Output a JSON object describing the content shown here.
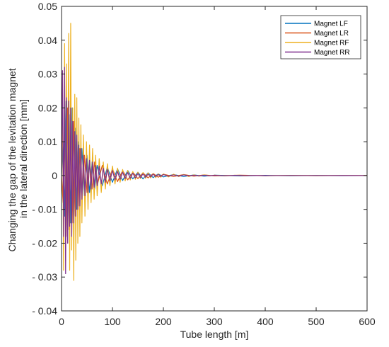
{
  "chart_data": {
    "type": "line",
    "xlabel": "Tube length [m]",
    "ylabel": [
      "Changing the gap of the levitation magnet",
      "in the lateral direction [mm]"
    ],
    "xlim": [
      0,
      600
    ],
    "ylim": [
      -0.04,
      0.05
    ],
    "x_ticks": [
      0,
      100,
      200,
      300,
      400,
      500,
      600
    ],
    "x_tick_labels": [
      "0",
      "100",
      "200",
      "300",
      "400",
      "500",
      "600"
    ],
    "y_ticks": [
      0.05,
      0.04,
      0.03,
      0.02,
      0.01,
      0,
      -0.01,
      -0.02,
      -0.03,
      -0.04
    ],
    "y_tick_labels": [
      "0.05",
      "0.04",
      "0.03",
      "0.02",
      "0.01",
      "0",
      "- 0.01",
      "- 0.02",
      "- 0.03",
      "- 0.04"
    ],
    "grid": false,
    "legend_position": "top-right",
    "series": [
      {
        "name": "Magnet LF",
        "color": "#0072BD",
        "x": [
          0,
          3,
          6,
          9,
          12,
          15,
          18,
          21,
          24,
          27,
          30,
          33,
          36,
          40,
          45,
          50,
          55,
          60,
          65,
          70,
          80,
          90,
          100,
          110,
          120,
          130,
          140,
          150,
          160,
          170,
          180,
          190,
          200,
          220,
          240,
          260,
          280,
          300,
          350,
          400,
          450,
          500,
          550,
          600
        ],
        "y": [
          0,
          0.01,
          -0.012,
          0.022,
          -0.02,
          0.018,
          -0.014,
          0.02,
          -0.012,
          0.014,
          -0.01,
          0.01,
          -0.008,
          0.008,
          -0.006,
          0.006,
          -0.005,
          0.004,
          -0.004,
          0.003,
          -0.003,
          0.0025,
          -0.002,
          0.002,
          -0.0015,
          0.0015,
          -0.001,
          0.001,
          -0.001,
          0.0008,
          -0.0006,
          0.0005,
          -0.0004,
          0.0003,
          -0.0003,
          0.0002,
          -0.0002,
          0.0001,
          -0.0001,
          5e-05,
          -5e-05,
          3e-05,
          -2e-05,
          0
        ]
      },
      {
        "name": "Magnet LR",
        "color": "#D95319",
        "x": [
          0,
          3,
          6,
          9,
          12,
          15,
          18,
          21,
          24,
          27,
          30,
          33,
          36,
          40,
          45,
          50,
          55,
          60,
          65,
          70,
          80,
          90,
          100,
          110,
          120,
          130,
          140,
          150,
          160,
          170,
          180,
          190,
          200,
          220,
          240,
          260,
          280,
          300,
          350,
          400,
          450,
          500,
          550,
          600
        ],
        "y": [
          0,
          -0.008,
          0.012,
          -0.018,
          0.02,
          -0.016,
          0.023,
          -0.014,
          0.016,
          -0.012,
          0.012,
          -0.009,
          0.008,
          -0.007,
          0.006,
          -0.005,
          0.005,
          -0.004,
          0.004,
          -0.003,
          0.003,
          -0.0025,
          0.002,
          -0.0018,
          0.0015,
          -0.0013,
          0.001,
          -0.0009,
          0.0008,
          -0.0007,
          0.0006,
          -0.0005,
          0.0004,
          -0.0003,
          0.0003,
          -0.0002,
          0.0002,
          -0.0001,
          0.0001,
          -5e-05,
          4e-05,
          -3e-05,
          2e-05,
          0
        ]
      },
      {
        "name": "Magnet RF",
        "color": "#EDB120",
        "x": [
          0,
          2,
          4,
          6,
          8,
          10,
          12,
          14,
          16,
          18,
          20,
          22,
          24,
          26,
          28,
          30,
          32,
          34,
          36,
          38,
          40,
          43,
          46,
          49,
          52,
          55,
          58,
          61,
          64,
          67,
          70,
          74,
          78,
          82,
          86,
          90,
          95,
          100,
          105,
          110,
          115,
          120,
          125,
          130,
          135,
          140,
          145,
          150,
          155,
          160,
          165,
          170,
          175,
          180,
          185,
          190,
          195,
          200,
          210,
          220,
          230,
          240,
          250,
          260,
          270,
          280,
          290,
          300,
          320,
          340,
          360,
          380,
          400,
          450,
          500,
          550,
          600
        ],
        "y": [
          0,
          0.022,
          -0.028,
          0.039,
          -0.025,
          0.033,
          -0.02,
          0.042,
          -0.028,
          0.045,
          -0.022,
          0.02,
          -0.031,
          0.024,
          -0.025,
          0.023,
          -0.02,
          0.017,
          -0.018,
          0.015,
          -0.014,
          0.012,
          -0.012,
          0.01,
          -0.01,
          0.009,
          -0.008,
          0.008,
          -0.007,
          0.006,
          -0.006,
          0.005,
          -0.005,
          0.004,
          -0.004,
          0.0035,
          -0.003,
          0.0028,
          -0.0025,
          0.0022,
          -0.002,
          0.0018,
          -0.0016,
          0.0015,
          -0.0013,
          0.0012,
          -0.0011,
          0.001,
          -0.0009,
          0.0009,
          -0.0008,
          0.0008,
          -0.0007,
          0.0006,
          -0.0006,
          0.0005,
          -0.0005,
          0.0005,
          -0.0004,
          0.0004,
          -0.0003,
          0.0003,
          -0.0003,
          0.0002,
          -0.0002,
          0.0002,
          -0.0001,
          0.0001,
          -0.0001,
          8e-05,
          -6e-05,
          5e-05,
          -4e-05,
          3e-05,
          -2e-05,
          1e-05,
          0
        ]
      },
      {
        "name": "Magnet RR",
        "color": "#7E2F8E",
        "x": [
          0,
          2,
          4,
          6,
          8,
          10,
          12,
          14,
          16,
          18,
          20,
          22,
          24,
          26,
          28,
          30,
          32,
          34,
          36,
          38,
          40,
          43,
          46,
          49,
          52,
          55,
          58,
          61,
          64,
          67,
          70,
          74,
          78,
          82,
          86,
          90,
          95,
          100,
          105,
          110,
          115,
          120,
          125,
          130,
          135,
          140,
          145,
          150,
          155,
          160,
          165,
          170,
          175,
          180,
          185,
          190,
          195,
          200,
          210,
          220,
          230,
          240,
          250,
          260,
          270,
          280,
          290,
          300,
          320,
          340,
          360,
          380,
          400,
          450,
          500,
          550,
          600
        ],
        "y": [
          0,
          0.031,
          -0.018,
          0.032,
          -0.029,
          0.023,
          -0.02,
          0.022,
          -0.015,
          0.02,
          -0.018,
          0.016,
          -0.014,
          0.013,
          -0.012,
          0.012,
          -0.01,
          0.009,
          -0.009,
          0.008,
          -0.007,
          0.006,
          -0.006,
          0.005,
          -0.005,
          0.0045,
          -0.004,
          0.004,
          -0.0035,
          0.003,
          -0.003,
          0.0028,
          -0.0025,
          0.0022,
          -0.002,
          0.0018,
          -0.0016,
          0.0015,
          -0.0013,
          0.0012,
          -0.0011,
          0.001,
          -0.0009,
          0.0009,
          -0.0008,
          0.0007,
          -0.0007,
          0.0006,
          -0.0006,
          0.0005,
          -0.0005,
          0.0004,
          -0.0004,
          0.0004,
          -0.0003,
          0.0003,
          -0.0003,
          0.0003,
          -0.0002,
          0.0002,
          -0.0002,
          0.0002,
          -0.0001,
          0.0001,
          -0.0001,
          0.0001,
          -8e-05,
          8e-05,
          -6e-05,
          5e-05,
          -4e-05,
          3e-05,
          -2e-05,
          2e-05,
          -1e-05,
          1e-05,
          0
        ]
      }
    ]
  }
}
